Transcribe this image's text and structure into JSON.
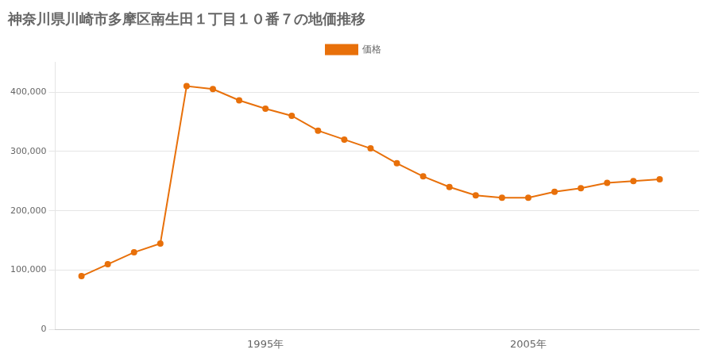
{
  "chart_data": {
    "type": "line",
    "title": "神奈川県川崎市多摩区南生田１丁目１０番７の地価推移",
    "x": [
      1988,
      1989,
      1990,
      1991,
      1992,
      1993,
      1994,
      1995,
      1996,
      1997,
      1998,
      1999,
      2000,
      2001,
      2002,
      2003,
      2004,
      2005,
      2006,
      2007,
      2008,
      2009,
      2010
    ],
    "series": [
      {
        "name": "価格",
        "color": "#e8700a",
        "marker": "circle",
        "values": [
          90000,
          110000,
          130000,
          145000,
          410000,
          405000,
          386000,
          372000,
          360000,
          335000,
          320000,
          305000,
          280000,
          258000,
          240000,
          226000,
          222000,
          222000,
          232000,
          238000,
          247000,
          250000,
          253000
        ]
      }
    ],
    "xlim": [
      1987.0,
      2011.5
    ],
    "xticks": [
      {
        "value": 1995,
        "label": "1995年"
      },
      {
        "value": 2005,
        "label": "2005年"
      }
    ],
    "ylim": [
      0,
      450000
    ],
    "yticks": [
      0,
      {
        "value": 100000,
        "label": "100,000"
      },
      {
        "value": 200000,
        "label": "200,000"
      },
      {
        "value": 300000,
        "label": "300,000"
      },
      {
        "value": 400000,
        "label": "400,000"
      }
    ],
    "grid": "y",
    "legend": "top"
  }
}
